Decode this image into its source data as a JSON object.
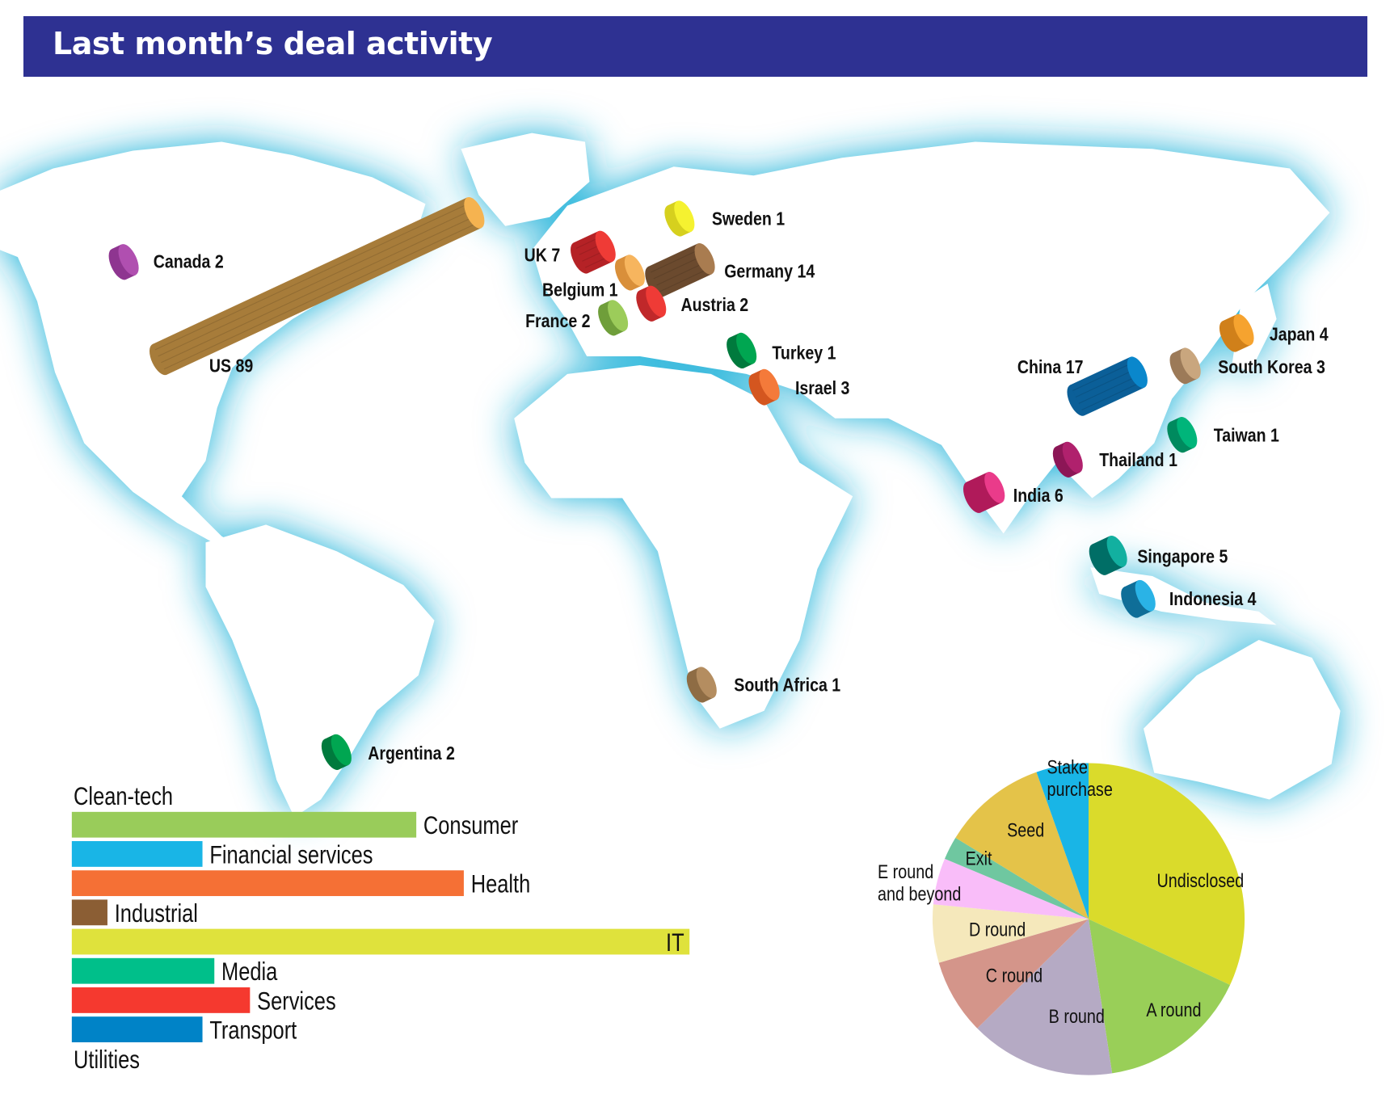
{
  "header": {
    "title": "Last month’s deal activity"
  },
  "map": {
    "halo_color": "#1ab0d8",
    "land_color": "#ffffff",
    "markers": [
      {
        "country": "US",
        "count": 89,
        "color": "#a77c3a",
        "cap": "#f5b350"
      },
      {
        "country": "Canada",
        "count": 2,
        "color": "#8e3590",
        "cap": "#b04fb0"
      },
      {
        "country": "UK",
        "count": 7,
        "color": "#b52226",
        "cap": "#ef3b36"
      },
      {
        "country": "Belgium",
        "count": 1,
        "color": "#d98f3a",
        "cap": "#f7b55e"
      },
      {
        "country": "Germany",
        "count": 14,
        "color": "#6b4a2e",
        "cap": "#a97c50"
      },
      {
        "country": "Sweden",
        "count": 1,
        "color": "#d6d01e",
        "cap": "#f5f230"
      },
      {
        "country": "Austria",
        "count": 2,
        "color": "#c0282a",
        "cap": "#ef3b36"
      },
      {
        "country": "France",
        "count": 2,
        "color": "#6f9e3a",
        "cap": "#9ccc5a"
      },
      {
        "country": "Turkey",
        "count": 1,
        "color": "#007a3d",
        "cap": "#00a651"
      },
      {
        "country": "Israel",
        "count": 3,
        "color": "#d4561f",
        "cap": "#f47a3a"
      },
      {
        "country": "China",
        "count": 17,
        "color": "#0b5f98",
        "cap": "#0a87cc"
      },
      {
        "country": "Japan",
        "count": 4,
        "color": "#d0801a",
        "cap": "#f6a32f"
      },
      {
        "country": "South Korea",
        "count": 3,
        "color": "#9c7a58",
        "cap": "#c9a67e"
      },
      {
        "country": "Taiwan",
        "count": 1,
        "color": "#008a5e",
        "cap": "#00b57a"
      },
      {
        "country": "Thailand",
        "count": 1,
        "color": "#8c1656",
        "cap": "#b0216d"
      },
      {
        "country": "India",
        "count": 6,
        "color": "#b01a5a",
        "cap": "#ea3b8a"
      },
      {
        "country": "Singapore",
        "count": 5,
        "color": "#006e66",
        "cap": "#12b0a0"
      },
      {
        "country": "Indonesia",
        "count": 4,
        "color": "#0f6e98",
        "cap": "#2ab3e6"
      },
      {
        "country": "South Africa",
        "count": 1,
        "color": "#8e6c44",
        "cap": "#b48d60"
      },
      {
        "country": "Argentina",
        "count": 2,
        "color": "#007a3d",
        "cap": "#00a651"
      }
    ]
  },
  "chart_data": [
    {
      "type": "bar",
      "orientation": "horizontal",
      "categories": [
        "Clean-tech",
        "Consumer",
        "Financial services",
        "Health",
        "Industrial",
        "IT",
        "Media",
        "Services",
        "Transport",
        "Utilities"
      ],
      "values": [
        0,
        29,
        11,
        33,
        3,
        52,
        12,
        15,
        11,
        0
      ],
      "colors": [
        "#8dc63f",
        "#99cc5a",
        "#19b5e6",
        "#f57035",
        "#8b5e34",
        "#dfe23c",
        "#00bf8a",
        "#f5392f",
        "#0083c7",
        "#999999"
      ],
      "title": "",
      "xlabel": "",
      "ylabel": "",
      "grid": false
    },
    {
      "type": "pie",
      "categories": [
        "Undisclosed",
        "A round",
        "B round",
        "C round",
        "D round",
        "E round and beyond",
        "Exit",
        "Seed",
        "Stake purchase"
      ],
      "label_lines": [
        [
          "Undisclosed"
        ],
        [
          "A round"
        ],
        [
          "B round"
        ],
        [
          "C round"
        ],
        [
          "D round"
        ],
        [
          "E round",
          "and beyond"
        ],
        [
          "Exit"
        ],
        [
          "Seed"
        ],
        [
          "Stake",
          "purchase"
        ]
      ],
      "values": [
        53,
        26,
        25,
        13,
        10,
        8,
        4,
        18,
        9
      ],
      "colors": [
        "#dadb2b",
        "#99cf58",
        "#b5aac4",
        "#d4958a",
        "#f5e8bb",
        "#f9bdf9",
        "#6fc7a0",
        "#e4c349",
        "#19b5e6"
      ],
      "start": "top",
      "direction": "clockwise"
    }
  ]
}
